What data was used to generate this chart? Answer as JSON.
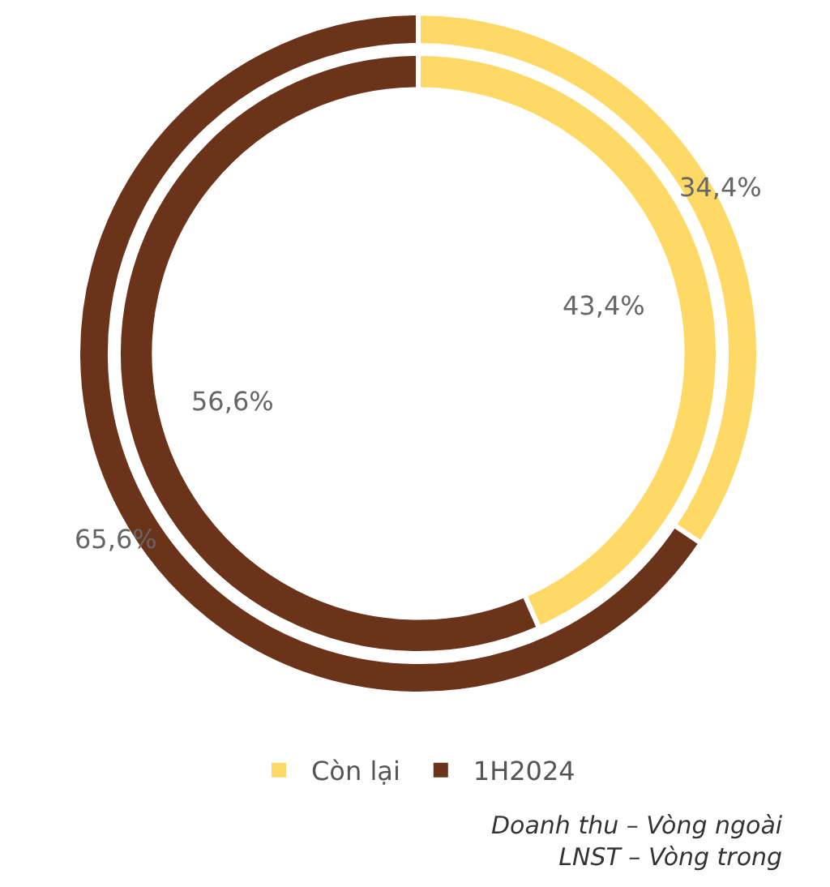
{
  "chart_data": {
    "type": "donut",
    "categories": [
      "Còn lại",
      "1H2024"
    ],
    "colors": [
      "#ffd966",
      "#6b3319"
    ],
    "series": [
      {
        "values": [
          34.4,
          65.6
        ],
        "value_labels": [
          "34,4%",
          "65,6%"
        ]
      },
      {
        "values": [
          43.4,
          56.6
        ],
        "value_labels": [
          "43,4%",
          "56,6%"
        ]
      }
    ],
    "legend": "bottom",
    "annotations": [
      "Doanh thu – Vòng ngoài",
      "LNST – Vòng trong"
    ]
  }
}
